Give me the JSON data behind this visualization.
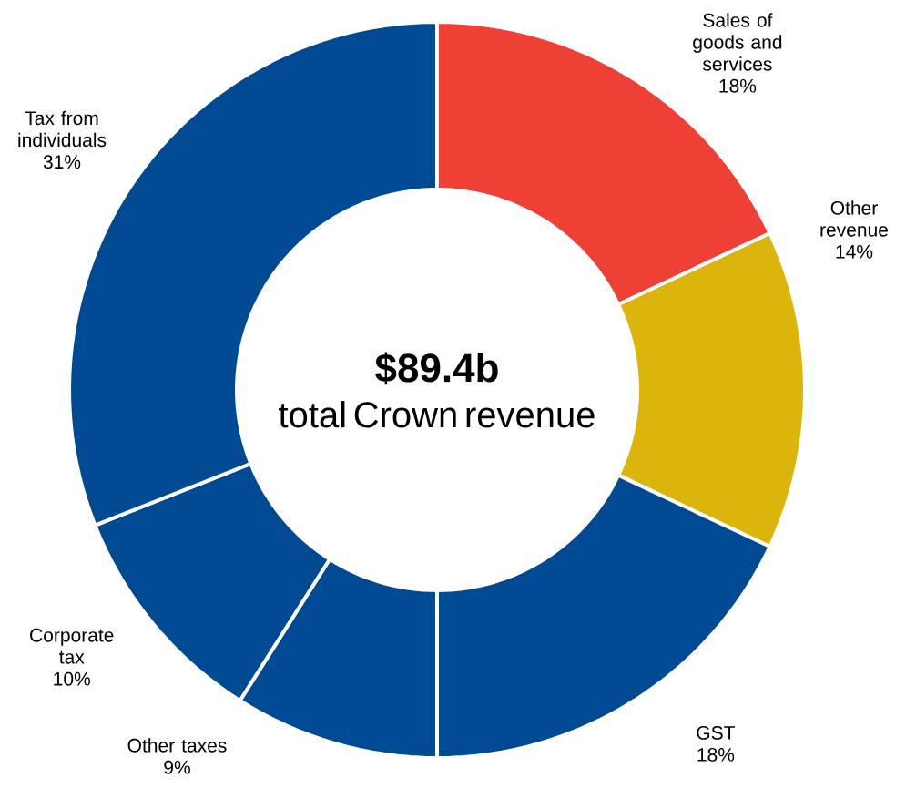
{
  "chart_data": {
    "type": "donut",
    "title": "$89.4b",
    "subtitle": "total Crown revenue",
    "categories": [
      "Sales of goods and services",
      "Other revenue",
      "GST",
      "Other taxes",
      "Corporate tax",
      "Tax from individuals"
    ],
    "values": [
      18,
      14,
      18,
      9,
      10,
      31
    ],
    "value_labels": [
      "18%",
      "14%",
      "18%",
      "9%",
      "10%",
      "31%"
    ],
    "colors": [
      "#ee4035",
      "#dbb40c",
      "#004a93",
      "#004a93",
      "#004a93",
      "#004a93"
    ]
  }
}
